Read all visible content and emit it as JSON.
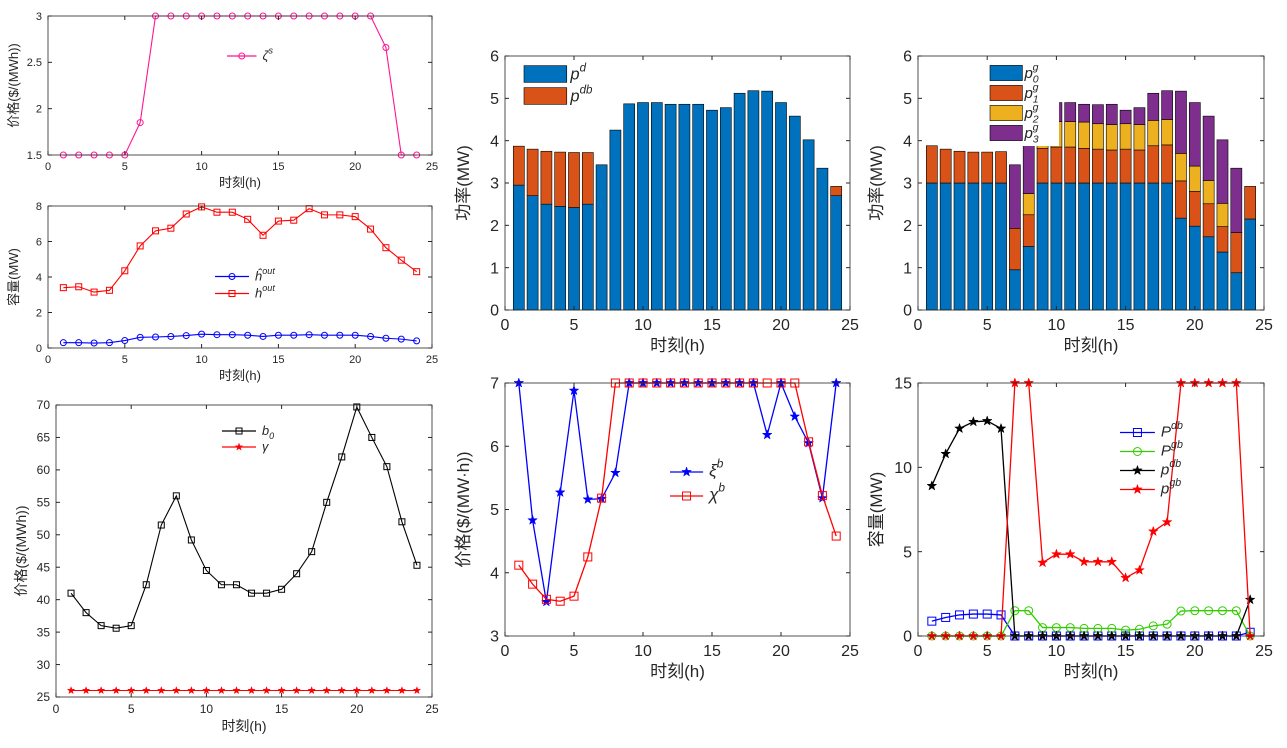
{
  "chart_data": [
    {
      "id": "zeta",
      "type": "line",
      "xlabel": "时刻(h)",
      "ylabel": "价格($/(MWh))",
      "xlim": [
        0,
        25
      ],
      "ylim": [
        1.5,
        3
      ],
      "xticks": [
        0,
        5,
        10,
        15,
        20,
        25
      ],
      "yticks": [
        1.5,
        2,
        2.5,
        3
      ],
      "ytick_labels": [
        "1.5",
        "2",
        "2.5",
        "3"
      ],
      "x": [
        1,
        2,
        3,
        4,
        5,
        6,
        7,
        8,
        9,
        10,
        11,
        12,
        13,
        14,
        15,
        16,
        17,
        18,
        19,
        20,
        21,
        22,
        23,
        24
      ],
      "series": [
        {
          "name": "ζ^s",
          "color": "#ff1493",
          "marker": "circle",
          "values": [
            1.5,
            1.5,
            1.5,
            1.5,
            1.5,
            1.85,
            3,
            3,
            3,
            3,
            3,
            3,
            3,
            3,
            3,
            3,
            3,
            3,
            3,
            3,
            3,
            2.66,
            1.5,
            1.5
          ]
        }
      ],
      "legend_position": "inside-top-middle"
    },
    {
      "id": "capacity-small",
      "type": "line",
      "xlabel": "时刻(h)",
      "ylabel": "容量(MW)",
      "xlim": [
        0,
        25
      ],
      "ylim": [
        0,
        8
      ],
      "xticks": [
        0,
        5,
        10,
        15,
        20,
        25
      ],
      "yticks": [
        0,
        2,
        4,
        6,
        8
      ],
      "x": [
        1,
        2,
        3,
        4,
        5,
        6,
        7,
        8,
        9,
        10,
        11,
        12,
        13,
        14,
        15,
        16,
        17,
        18,
        19,
        20,
        21,
        22,
        23,
        24
      ],
      "series": [
        {
          "name": "ĥ^out",
          "color": "#0000ff",
          "marker": "circle",
          "values": [
            0.3,
            0.3,
            0.28,
            0.3,
            0.42,
            0.6,
            0.62,
            0.65,
            0.7,
            0.78,
            0.75,
            0.75,
            0.72,
            0.65,
            0.72,
            0.72,
            0.75,
            0.72,
            0.72,
            0.72,
            0.65,
            0.55,
            0.5,
            0.4
          ]
        },
        {
          "name": "h^out",
          "color": "#ff0000",
          "marker": "square",
          "values": [
            3.4,
            3.45,
            3.15,
            3.25,
            4.35,
            5.75,
            6.6,
            6.75,
            7.55,
            7.95,
            7.65,
            7.65,
            7.25,
            6.35,
            7.15,
            7.2,
            7.85,
            7.5,
            7.5,
            7.4,
            6.7,
            5.65,
            4.95,
            4.3
          ]
        }
      ],
      "legend_position": "inside-middle"
    },
    {
      "id": "price-b0",
      "type": "line",
      "xlabel": "时刻(h)",
      "ylabel": "价格($/(MWh))",
      "xlim": [
        0,
        25
      ],
      "ylim": [
        25,
        70
      ],
      "xticks": [
        0,
        5,
        10,
        15,
        20,
        25
      ],
      "yticks": [
        25,
        30,
        35,
        40,
        45,
        50,
        55,
        60,
        65,
        70
      ],
      "x": [
        1,
        2,
        3,
        4,
        5,
        6,
        7,
        8,
        9,
        10,
        11,
        12,
        13,
        14,
        15,
        16,
        17,
        18,
        19,
        20,
        21,
        22,
        23,
        24
      ],
      "series": [
        {
          "name": "b_0",
          "color": "#000000",
          "marker": "square",
          "values": [
            41,
            38,
            36,
            35.6,
            36,
            42.3,
            51.5,
            56,
            49.2,
            44.5,
            42.3,
            42.3,
            41,
            41,
            41.6,
            44,
            47.4,
            55,
            62,
            69.7,
            65,
            60.5,
            52,
            45.3
          ]
        },
        {
          "name": "γ",
          "color": "#ff0000",
          "marker": "star",
          "values": [
            26,
            26,
            26,
            26,
            26,
            26,
            26,
            26,
            26,
            26,
            26,
            26,
            26,
            26,
            26,
            26,
            26,
            26,
            26,
            26,
            26,
            26,
            26,
            26
          ]
        }
      ],
      "legend_position": "inside-top-middle"
    },
    {
      "id": "power-pd",
      "type": "bar",
      "stacked": true,
      "xlabel": "时刻(h)",
      "ylabel": "功率(MW)",
      "xlim": [
        0,
        25
      ],
      "ylim": [
        0,
        6
      ],
      "xticks": [
        0,
        5,
        10,
        15,
        20,
        25
      ],
      "yticks": [
        0,
        1,
        2,
        3,
        4,
        5,
        6
      ],
      "x": [
        1,
        2,
        3,
        4,
        5,
        6,
        7,
        8,
        9,
        10,
        11,
        12,
        13,
        14,
        15,
        16,
        17,
        18,
        19,
        20,
        21,
        22,
        23,
        24
      ],
      "series": [
        {
          "name": "p^d",
          "color": "#0072bd",
          "values": [
            2.95,
            2.7,
            2.5,
            2.45,
            2.42,
            2.5,
            3.43,
            4.25,
            4.87,
            4.9,
            4.9,
            4.86,
            4.86,
            4.86,
            4.72,
            4.78,
            5.12,
            5.18,
            5.17,
            4.9,
            4.58,
            4.02,
            3.35,
            2.7
          ]
        },
        {
          "name": "p^db",
          "color": "#d95319",
          "values": [
            0.92,
            1.1,
            1.25,
            1.28,
            1.3,
            1.22,
            0,
            0,
            0,
            0,
            0,
            0,
            0,
            0,
            0,
            0,
            0,
            0,
            0,
            0,
            0,
            0,
            0,
            0.22
          ]
        }
      ],
      "legend_position": "top-left"
    },
    {
      "id": "price-xi-chi",
      "type": "line",
      "xlabel": "时刻(h)",
      "ylabel": "价格($/(MW·h))",
      "xlim": [
        0,
        25
      ],
      "ylim": [
        3,
        7
      ],
      "xticks": [
        0,
        5,
        10,
        15,
        20,
        25
      ],
      "yticks": [
        3,
        4,
        5,
        6,
        7
      ],
      "x": [
        1,
        2,
        3,
        4,
        5,
        6,
        7,
        8,
        9,
        10,
        11,
        12,
        13,
        14,
        15,
        16,
        17,
        18,
        19,
        20,
        21,
        22,
        23,
        24
      ],
      "series": [
        {
          "name": "ξ^b",
          "color": "#0000ff",
          "marker": "star",
          "values": [
            7,
            4.83,
            3.54,
            5.27,
            6.88,
            5.16,
            5.17,
            5.58,
            7,
            7,
            7,
            7,
            7,
            7,
            7,
            7,
            7,
            7,
            6.18,
            7,
            6.47,
            6.05,
            5.18,
            7
          ]
        },
        {
          "name": "χ^b",
          "color": "#ff0000",
          "marker": "square",
          "values": [
            4.12,
            3.82,
            3.58,
            3.55,
            3.63,
            4.25,
            5.18,
            7,
            7,
            7,
            7,
            7,
            7,
            7,
            7,
            7,
            7,
            7,
            7,
            7,
            7,
            6.07,
            5.22,
            4.58
          ]
        }
      ],
      "legend_position": "inside-right"
    },
    {
      "id": "power-pg",
      "type": "bar",
      "stacked": true,
      "xlabel": "时刻(h)",
      "ylabel": "功率(MW)",
      "xlim": [
        0,
        25
      ],
      "ylim": [
        0,
        6
      ],
      "xticks": [
        0,
        5,
        10,
        15,
        20,
        25
      ],
      "yticks": [
        0,
        1,
        2,
        3,
        4,
        5,
        6
      ],
      "x": [
        1,
        2,
        3,
        4,
        5,
        6,
        7,
        8,
        9,
        10,
        11,
        12,
        13,
        14,
        15,
        16,
        17,
        18,
        19,
        20,
        21,
        22,
        23,
        24
      ],
      "series": [
        {
          "name": "p_0^g",
          "color": "#0072bd",
          "values": [
            3,
            3,
            3,
            3,
            3,
            3,
            0.95,
            1.5,
            3,
            3,
            3,
            3,
            3,
            3,
            3,
            3,
            3,
            3,
            2.17,
            1.98,
            1.73,
            1.37,
            0.88,
            2.15
          ]
        },
        {
          "name": "p_1^g",
          "color": "#d95319",
          "values": [
            0.88,
            0.8,
            0.75,
            0.73,
            0.73,
            0.74,
            0.98,
            0.75,
            0.82,
            0.85,
            0.85,
            0.82,
            0.8,
            0.78,
            0.8,
            0.78,
            0.88,
            0.9,
            0.88,
            0.82,
            0.78,
            0.6,
            0.95,
            0.77
          ]
        },
        {
          "name": "p_2^g",
          "color": "#edb120",
          "values": [
            0,
            0,
            0,
            0,
            0,
            0,
            0,
            0.5,
            0.6,
            0.6,
            0.6,
            0.62,
            0.6,
            0.6,
            0.6,
            0.6,
            0.6,
            0.6,
            0.65,
            0.6,
            0.55,
            0.55,
            0,
            0
          ]
        },
        {
          "name": "p_3^g",
          "color": "#7e2f8e",
          "values": [
            0,
            0,
            0,
            0,
            0,
            0,
            1.5,
            1.2,
            0.5,
            0.45,
            0.45,
            0.42,
            0.45,
            0.48,
            0.32,
            0.4,
            0.64,
            0.68,
            1.47,
            1.5,
            1.52,
            1.5,
            1.52,
            0
          ]
        }
      ],
      "legend_position": "top-left"
    },
    {
      "id": "capacity-large",
      "type": "line",
      "xlabel": "时刻(h)",
      "ylabel": "容量(MW)",
      "xlim": [
        0,
        25
      ],
      "ylim": [
        0,
        15
      ],
      "xticks": [
        0,
        5,
        10,
        15,
        20,
        25
      ],
      "yticks": [
        0,
        5,
        10,
        15
      ],
      "x": [
        1,
        2,
        3,
        4,
        5,
        6,
        7,
        8,
        9,
        10,
        11,
        12,
        13,
        14,
        15,
        16,
        17,
        18,
        19,
        20,
        21,
        22,
        23,
        24
      ],
      "series": [
        {
          "name": "P^db",
          "color": "#0000ff",
          "marker": "square",
          "values": [
            0.88,
            1.1,
            1.25,
            1.3,
            1.3,
            1.25,
            0,
            0,
            0,
            0,
            0,
            0,
            0,
            0,
            0,
            0,
            0,
            0,
            0,
            0,
            0,
            0,
            0,
            0.22
          ]
        },
        {
          "name": "P^gb",
          "color": "#33cc00",
          "marker": "circle",
          "values": [
            0,
            0,
            0,
            0,
            0,
            0,
            1.5,
            1.5,
            0.5,
            0.5,
            0.5,
            0.45,
            0.45,
            0.45,
            0.35,
            0.4,
            0.6,
            0.7,
            1.48,
            1.5,
            1.5,
            1.5,
            1.5,
            0
          ]
        },
        {
          "name": "p^db",
          "color": "#000000",
          "marker": "star",
          "values": [
            8.9,
            10.8,
            12.3,
            12.7,
            12.75,
            12.3,
            0,
            0,
            0,
            0,
            0,
            0,
            0,
            0,
            0,
            0,
            0,
            0,
            0,
            0,
            0,
            0,
            0,
            2.15
          ]
        },
        {
          "name": "p^gb",
          "color": "#ff0000",
          "marker": "star",
          "values": [
            0,
            0,
            0,
            0,
            0,
            0,
            15,
            15,
            4.35,
            4.85,
            4.85,
            4.4,
            4.4,
            4.4,
            3.45,
            3.9,
            6.2,
            6.75,
            15,
            15,
            15,
            15,
            15,
            0
          ]
        }
      ],
      "legend_position": "inside-right"
    }
  ]
}
